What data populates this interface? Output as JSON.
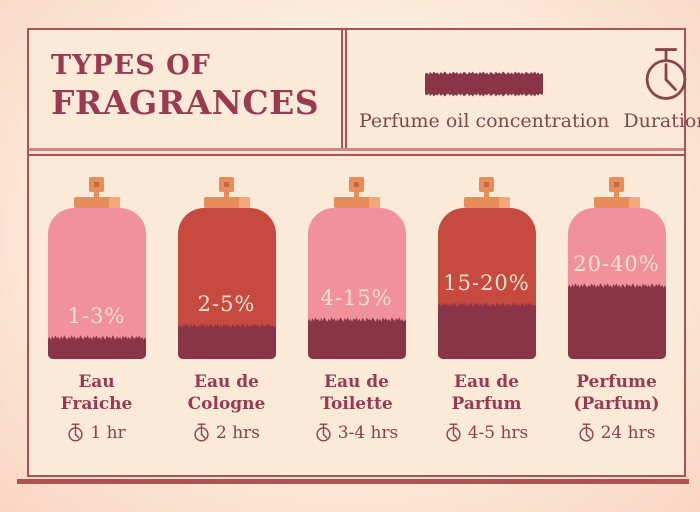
{
  "header": {
    "title_line1": "TYPES OF",
    "title_line2": "FRAGRANCES",
    "legend": {
      "concentration_label": "Perfume oil concentration",
      "duration_label": "Duration"
    }
  },
  "bottles": [
    {
      "name_line1": "Eau",
      "name_line2": "Fraiche",
      "concentration": "1-3%",
      "duration": "1 hr",
      "variant": "pink",
      "fill_percent": 11
    },
    {
      "name_line1": "Eau de",
      "name_line2": "Cologne",
      "concentration": "2-5%",
      "duration": "2 hrs",
      "variant": "red",
      "fill_percent": 19
    },
    {
      "name_line1": "Eau de",
      "name_line2": "Toilette",
      "concentration": "4-15%",
      "duration": "3-4 hrs",
      "variant": "pink",
      "fill_percent": 23
    },
    {
      "name_line1": "Eau de",
      "name_line2": "Parfum",
      "concentration": "15-20%",
      "duration": "4-5 hrs",
      "variant": "red",
      "fill_percent": 33
    },
    {
      "name_line1": "Perfume",
      "name_line2": "(Parfum)",
      "concentration": "20-40%",
      "duration": "24 hrs",
      "variant": "pink",
      "fill_percent": 46
    }
  ],
  "chart_data": {
    "type": "bar",
    "title": "Types of Fragrances",
    "categories": [
      "Eau Fraiche",
      "Eau de Cologne",
      "Eau de Toilette",
      "Eau de Parfum",
      "Perfume (Parfum)"
    ],
    "series": [
      {
        "name": "Perfume oil concentration",
        "values": [
          "1-3%",
          "2-5%",
          "4-15%",
          "15-20%",
          "20-40%"
        ]
      },
      {
        "name": "Duration",
        "values": [
          "1 hr",
          "2 hrs",
          "3-4 hrs",
          "4-5 hrs",
          "24 hrs"
        ]
      }
    ],
    "fill_levels_percent": [
      11,
      19,
      23,
      33,
      46
    ],
    "legend_position": "top-right"
  },
  "colors": {
    "bg-outer": "#f9d6c3",
    "bg-outer-center": "#fdeedd",
    "bg-frame": "#fcead9",
    "frame-border": "#b14f52",
    "rule-dusty": "#cb8a81",
    "maroon-title": "#9a3a50",
    "maroon-soft": "#8c4348",
    "legend-text": "#82474a",
    "bottle-pink": "#f0919b",
    "bottle-red": "#c64a40",
    "fill-dark": "#8a3447",
    "sprayer-orange": "#e88c5a",
    "sprayer-orange-light": "#f3a87c",
    "sprayer-hole": "#c06a3e",
    "pct-text": "#fbe3cd"
  }
}
